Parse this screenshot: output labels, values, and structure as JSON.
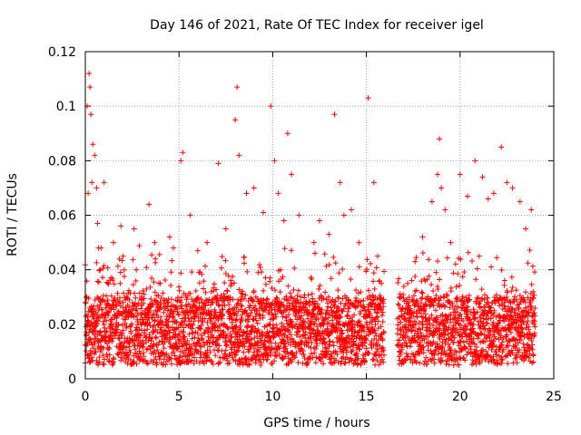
{
  "chart_data": {
    "type": "scatter",
    "title": "Day 146 of 2021, Rate Of TEC Index for receiver igel",
    "xlabel": "GPS time / hours",
    "ylabel": "ROTI / TECUs",
    "xlim": [
      0,
      25
    ],
    "ylim": [
      0,
      0.12
    ],
    "grid": true,
    "marker": "+",
    "color": "#ff0000",
    "xticks": [
      0,
      5,
      10,
      15,
      20,
      25
    ],
    "xtick_labels": [
      "0",
      "5",
      "10",
      "15",
      "20",
      "25"
    ],
    "yticks": [
      0,
      0.02,
      0.04,
      0.06,
      0.08,
      0.1,
      0.12
    ],
    "ytick_labels": [
      "0",
      "0.02",
      "0.04",
      "0.06",
      "0.08",
      "0.1",
      "0.12"
    ],
    "data_gap_hours": [
      15.95,
      16.65
    ],
    "series": [
      {
        "name": "ROTI",
        "x": [
          0.05,
          0.1,
          0.15,
          0.2,
          0.25,
          0.3,
          0.35,
          0.4,
          0.5,
          0.6,
          0.65,
          0.7,
          0.8,
          1.0,
          1.2,
          1.5,
          1.9,
          2.2,
          2.6,
          3.0,
          3.4,
          3.7,
          4.0,
          4.5,
          4.7,
          5.1,
          5.2,
          5.6,
          6.0,
          6.5,
          7.1,
          7.5,
          8.0,
          8.1,
          8.2,
          8.6,
          9.0,
          9.5,
          9.9,
          10.1,
          10.3,
          10.6,
          10.8,
          11.0,
          11.4,
          12.2,
          12.5,
          13.0,
          13.3,
          13.6,
          13.8,
          14.2,
          14.6,
          15.1,
          15.4,
          15.6,
          15.8,
          16.8,
          17.2,
          17.6,
          18.0,
          18.5,
          18.8,
          18.9,
          19.0,
          19.2,
          19.5,
          20.0,
          20.4,
          20.8,
          21.2,
          21.5,
          21.8,
          22.2,
          22.5,
          22.8,
          23.2,
          23.5,
          23.8
        ],
        "y": [
          0.03,
          0.1,
          0.068,
          0.112,
          0.107,
          0.097,
          0.072,
          0.086,
          0.082,
          0.07,
          0.057,
          0.048,
          0.04,
          0.072,
          0.035,
          0.05,
          0.056,
          0.03,
          0.055,
          0.03,
          0.064,
          0.05,
          0.035,
          0.052,
          0.048,
          0.08,
          0.083,
          0.06,
          0.047,
          0.05,
          0.079,
          0.055,
          0.095,
          0.107,
          0.082,
          0.068,
          0.07,
          0.061,
          0.1,
          0.08,
          0.068,
          0.058,
          0.09,
          0.075,
          0.06,
          0.05,
          0.058,
          0.053,
          0.097,
          0.072,
          0.06,
          0.062,
          0.05,
          0.103,
          0.072,
          0.045,
          0.035,
          0.03,
          0.035,
          0.043,
          0.052,
          0.065,
          0.075,
          0.088,
          0.07,
          0.062,
          0.05,
          0.075,
          0.067,
          0.08,
          0.074,
          0.066,
          0.068,
          0.085,
          0.072,
          0.07,
          0.065,
          0.055,
          0.062
        ],
        "baseline_range": [
          0.005,
          0.03
        ]
      }
    ]
  }
}
